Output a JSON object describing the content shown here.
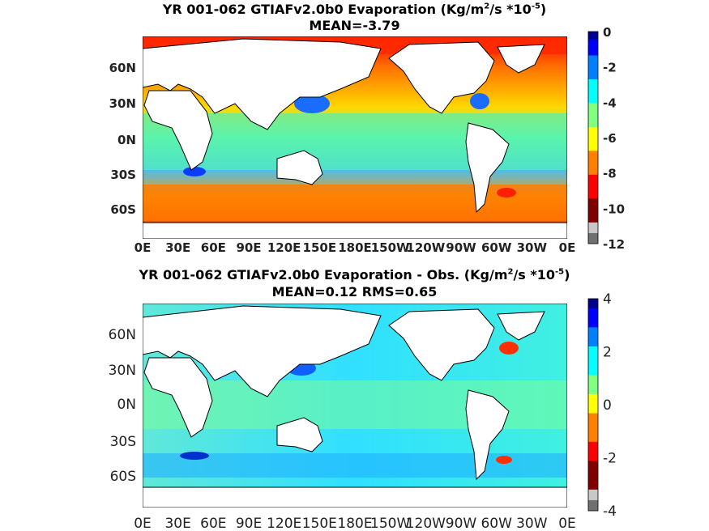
{
  "chart_data": [
    {
      "type": "heatmap",
      "title_main": "YR 001-062 GTIAFv2.0b0  Evaporation (Kg/m",
      "title_sup1": "2",
      "title_mid": "/s *10",
      "title_sup2": "-5",
      "title_end": ")",
      "subtitle": "MEAN=-3.79",
      "xticks": [
        "0E",
        "30E",
        "60E",
        "90E",
        "120E",
        "150E",
        "180E",
        "150W",
        "120W",
        "90W",
        "60W",
        "30W",
        "0E"
      ],
      "yticks": [
        "60N",
        "30N",
        "0N",
        "30S",
        "60S"
      ],
      "colorbar": {
        "ticks": [
          "0",
          "-2",
          "-4",
          "-6",
          "-8",
          "-10",
          "-12"
        ],
        "range": [
          -12,
          0
        ]
      }
    },
    {
      "type": "heatmap",
      "title_main": "YR 001-062 GTIAFv2.0b0 Evaporation - Obs. (Kg/m",
      "title_sup1": "2",
      "title_mid": "/s *10",
      "title_sup2": "-5",
      "title_end": ")",
      "subtitle": "MEAN=0.12   RMS=0.65",
      "xticks": [
        "0E",
        "30E",
        "60E",
        "90E",
        "120E",
        "150E",
        "180E",
        "150W",
        "120W",
        "90W",
        "60W",
        "30W",
        "0E"
      ],
      "yticks": [
        "60N",
        "30N",
        "0N",
        "30S",
        "60S"
      ],
      "colorbar": {
        "ticks": [
          "4",
          "2",
          "0",
          "-2",
          "-4"
        ],
        "range": [
          -4,
          4
        ]
      }
    }
  ],
  "colors": {
    "jet": [
      "#00008f",
      "#0000ff",
      "#0080ff",
      "#00ffff",
      "#80ff80",
      "#ffff00",
      "#ff8000",
      "#ff0000",
      "#800000"
    ],
    "land": "#ffffff",
    "gray_low": "#c8c8c8",
    "gray_lowest": "#707070"
  }
}
